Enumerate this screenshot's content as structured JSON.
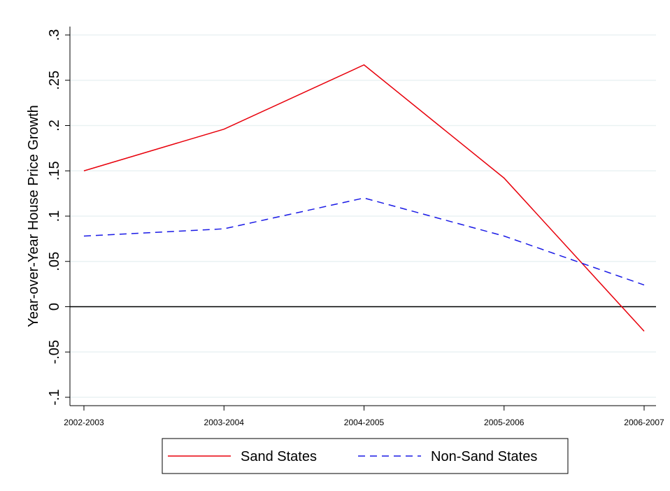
{
  "chart_data": {
    "type": "line",
    "ylabel": "Year-over-Year House Price Growth",
    "categories": [
      "2002-2003",
      "2003-2004",
      "2004-2005",
      "2005-2006",
      "2006-2007"
    ],
    "series": [
      {
        "name": "Sand States",
        "color": "#e8000b",
        "style": "solid",
        "values": [
          0.15,
          0.196,
          0.267,
          0.142,
          -0.027
        ]
      },
      {
        "name": "Non-Sand States",
        "color": "#1a1ae6",
        "style": "dashed",
        "values": [
          0.078,
          0.086,
          0.12,
          0.078,
          0.024
        ]
      }
    ],
    "ylim": [
      -0.1,
      0.3
    ],
    "yticks": [
      {
        "value": -0.1,
        "label": "-.1"
      },
      {
        "value": -0.05,
        "label": "-.05"
      },
      0,
      {
        "value": 0.05,
        "label": ".05"
      },
      {
        "value": 0.1,
        "label": ".1"
      },
      {
        "value": 0.15,
        "label": ".15"
      },
      {
        "value": 0.2,
        "label": ".2"
      },
      {
        "value": 0.25,
        "label": ".25"
      },
      {
        "value": 0.3,
        "label": ".3"
      }
    ],
    "grid": true,
    "yline": 0,
    "legend": "bottom"
  }
}
